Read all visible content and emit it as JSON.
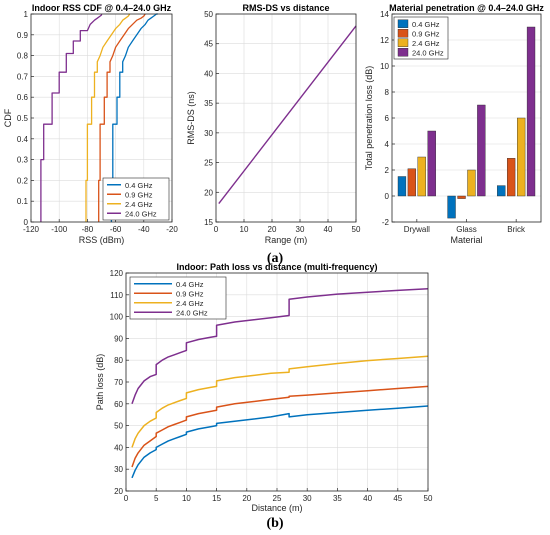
{
  "figure": {
    "caption_a": "(a)",
    "caption_b": "(b)"
  },
  "colors": {
    "c04": "#0072BD",
    "c09": "#D95319",
    "c24": "#EDB120",
    "c240": "#7E2F8E"
  },
  "chart_data": [
    {
      "id": "cdf",
      "type": "line",
      "title": "Indoor RSS CDF @ 0.4–24.0 GHz",
      "xlabel": "RSS (dBm)",
      "ylabel": "CDF",
      "xlim": [
        -120,
        -20
      ],
      "ylim": [
        0,
        1
      ],
      "xticks": [
        "-120",
        "-100",
        "-80",
        "-60",
        "-40",
        "-20"
      ],
      "xtick_values": [
        -120,
        -100,
        -80,
        -60,
        -40,
        -20
      ],
      "yticks": [
        "0",
        "0.1",
        "0.2",
        "0.3",
        "0.4",
        "0.5",
        "0.6",
        "0.7",
        "0.8",
        "0.9",
        "1"
      ],
      "ytick_values": [
        0,
        0.1,
        0.2,
        0.3,
        0.4,
        0.5,
        0.6,
        0.7,
        0.8,
        0.9,
        1
      ],
      "grid": true,
      "legend_position": "bottom-right",
      "series": [
        {
          "name": "0.4 GHz",
          "color": "#0072BD",
          "x": [
            -63,
            -63,
            -62,
            -62,
            -59,
            -59,
            -57,
            -57,
            -55,
            -55,
            -53,
            -51,
            -48,
            -45,
            -42,
            -39,
            -37,
            -35,
            -33,
            -31,
            -30
          ],
          "y": [
            0,
            0.2,
            0.2,
            0.47,
            0.47,
            0.6,
            0.6,
            0.72,
            0.72,
            0.77,
            0.8,
            0.84,
            0.87,
            0.9,
            0.93,
            0.95,
            0.97,
            0.98,
            0.99,
            1.0,
            1.0
          ]
        },
        {
          "name": "0.9 GHz",
          "color": "#D95319",
          "x": [
            -72,
            -72,
            -71,
            -71,
            -68,
            -68,
            -66,
            -66,
            -64,
            -64,
            -62,
            -60,
            -57,
            -54,
            -51,
            -48,
            -45,
            -42,
            -40,
            -39
          ],
          "y": [
            0,
            0.2,
            0.2,
            0.47,
            0.47,
            0.6,
            0.6,
            0.72,
            0.72,
            0.77,
            0.8,
            0.84,
            0.87,
            0.9,
            0.93,
            0.95,
            0.97,
            0.98,
            0.99,
            1.0
          ]
        },
        {
          "name": "2.4 GHz",
          "color": "#EDB120",
          "x": [
            -81,
            -81,
            -80,
            -80,
            -77,
            -77,
            -75,
            -75,
            -73,
            -73,
            -71,
            -69,
            -66,
            -63,
            -60,
            -57,
            -55,
            -53,
            -51,
            -50
          ],
          "y": [
            0,
            0.2,
            0.2,
            0.47,
            0.47,
            0.6,
            0.6,
            0.72,
            0.72,
            0.77,
            0.8,
            0.84,
            0.87,
            0.9,
            0.93,
            0.95,
            0.97,
            0.98,
            0.99,
            1.0
          ]
        },
        {
          "name": "24.0 GHz",
          "color": "#7E2F8E",
          "x": [
            -113,
            -113,
            -111,
            -111,
            -105,
            -105,
            -100,
            -100,
            -95,
            -95,
            -90,
            -90,
            -85,
            -85,
            -80,
            -78,
            -75,
            -73,
            -71,
            -70,
            -70
          ],
          "y": [
            0,
            0.3,
            0.3,
            0.47,
            0.47,
            0.62,
            0.62,
            0.72,
            0.72,
            0.81,
            0.81,
            0.87,
            0.87,
            0.92,
            0.92,
            0.95,
            0.97,
            0.98,
            0.99,
            0.995,
            1.0
          ]
        }
      ]
    },
    {
      "id": "rmsds",
      "type": "line",
      "title": "RMS-DS vs distance",
      "xlabel": "Range (m)",
      "ylabel": "RMS-DS (ns)",
      "xlim": [
        0,
        50
      ],
      "ylim": [
        15,
        50
      ],
      "xticks": [
        "0",
        "10",
        "20",
        "30",
        "40",
        "50"
      ],
      "xtick_values": [
        0,
        10,
        20,
        30,
        40,
        50
      ],
      "yticks": [
        "15",
        "20",
        "25",
        "30",
        "35",
        "40",
        "45",
        "50"
      ],
      "ytick_values": [
        15,
        20,
        25,
        30,
        35,
        40,
        45,
        50
      ],
      "grid": true,
      "series": [
        {
          "color": "#7E2F8E",
          "x": [
            1,
            50
          ],
          "y": [
            18.1,
            48.0
          ]
        }
      ]
    },
    {
      "id": "material",
      "type": "bar",
      "title": "Material penetration @ 0.4–24.0 GHz",
      "xlabel": "Material",
      "ylabel": "Total penetration loss (dB)",
      "categories": [
        "Drywall",
        "Glass",
        "Brick"
      ],
      "ylim": [
        -2,
        14
      ],
      "yticks": [
        "-2",
        "0",
        "2",
        "4",
        "6",
        "8",
        "10",
        "12",
        "14"
      ],
      "ytick_values": [
        -2,
        0,
        2,
        4,
        6,
        8,
        10,
        12,
        14
      ],
      "grid": true,
      "legend_position": "top-left",
      "series": [
        {
          "name": "0.4 GHz",
          "color": "#0072BD",
          "values": [
            1.5,
            -1.7,
            0.8
          ]
        },
        {
          "name": "0.9 GHz",
          "color": "#D95319",
          "values": [
            2.1,
            -0.2,
            2.9
          ]
        },
        {
          "name": "2.4 GHz",
          "color": "#EDB120",
          "values": [
            3.0,
            2.0,
            6.0
          ]
        },
        {
          "name": "24.0 GHz",
          "color": "#7E2F8E",
          "values": [
            5.0,
            7.0,
            13.0
          ]
        }
      ]
    },
    {
      "id": "pathloss",
      "type": "line",
      "title": "Indoor: Path loss vs distance (multi-frequency)",
      "xlabel": "Distance (m)",
      "ylabel": "Path loss (dB)",
      "xlim": [
        0,
        50
      ],
      "ylim": [
        20,
        120
      ],
      "xticks": [
        "0",
        "5",
        "10",
        "15",
        "20",
        "25",
        "30",
        "35",
        "40",
        "45",
        "50"
      ],
      "xtick_values": [
        0,
        5,
        10,
        15,
        20,
        25,
        30,
        35,
        40,
        45,
        50
      ],
      "yticks": [
        "20",
        "30",
        "40",
        "50",
        "60",
        "70",
        "80",
        "90",
        "100",
        "110",
        "120"
      ],
      "ytick_values": [
        20,
        30,
        40,
        50,
        60,
        70,
        80,
        90,
        100,
        110,
        120
      ],
      "grid": true,
      "legend_position": "top-left",
      "series": [
        {
          "name": "0.4 GHz",
          "color": "#0072BD",
          "x": [
            1,
            1.5,
            2,
            3,
            4,
            5,
            5,
            6,
            7,
            8,
            9,
            10,
            10,
            12,
            14,
            15,
            15,
            18,
            21,
            24,
            27,
            27,
            30,
            35,
            40,
            45,
            50
          ],
          "y": [
            26,
            29.5,
            32,
            35.5,
            37.5,
            39,
            40,
            41.5,
            43,
            44,
            45,
            46,
            47,
            48.5,
            49.5,
            50,
            51,
            52,
            53,
            54,
            55.5,
            54,
            55,
            56,
            57,
            58,
            59
          ]
        },
        {
          "name": "0.9 GHz",
          "color": "#D95319",
          "x": [
            1,
            1.5,
            2,
            3,
            4,
            5,
            5,
            6,
            7,
            8,
            9,
            10,
            10,
            12,
            14,
            15,
            15,
            18,
            21,
            24,
            27,
            27,
            30,
            35,
            40,
            45,
            50
          ],
          "y": [
            31,
            35,
            37.5,
            41,
            43,
            45,
            46.5,
            48,
            49.5,
            50.5,
            51.5,
            52.5,
            54,
            55.5,
            56.5,
            57,
            58.5,
            60,
            61,
            62,
            63,
            63.5,
            64,
            65,
            66,
            67,
            68
          ]
        },
        {
          "name": "2.4 GHz",
          "color": "#EDB120",
          "x": [
            1,
            1.5,
            2,
            3,
            4,
            5,
            5,
            6,
            7,
            8,
            9,
            10,
            10,
            12,
            14,
            15,
            15,
            18,
            21,
            24,
            27,
            27,
            30,
            35,
            40,
            45,
            50
          ],
          "y": [
            40,
            44,
            46.5,
            50,
            52,
            53.5,
            56,
            58,
            59.5,
            60.5,
            61.5,
            62.5,
            65,
            66.5,
            67.5,
            68,
            70.5,
            72,
            73,
            74,
            74.5,
            76,
            77,
            78.5,
            79.8,
            80.8,
            81.8
          ]
        },
        {
          "name": "24.0 GHz",
          "color": "#7E2F8E",
          "x": [
            1,
            1.5,
            2,
            3,
            4,
            5,
            5,
            6,
            7,
            8,
            9,
            10,
            10,
            12,
            14,
            15,
            15,
            18,
            21,
            24,
            27,
            27,
            30,
            35,
            40,
            45,
            50
          ],
          "y": [
            60,
            64,
            67,
            70.5,
            72.5,
            73.5,
            78,
            80,
            81.5,
            82.5,
            83.5,
            84.5,
            88,
            89.5,
            90.5,
            91,
            96,
            97.5,
            98.5,
            99.5,
            100.5,
            108,
            109,
            110.3,
            111.2,
            112,
            112.8
          ]
        }
      ]
    }
  ]
}
